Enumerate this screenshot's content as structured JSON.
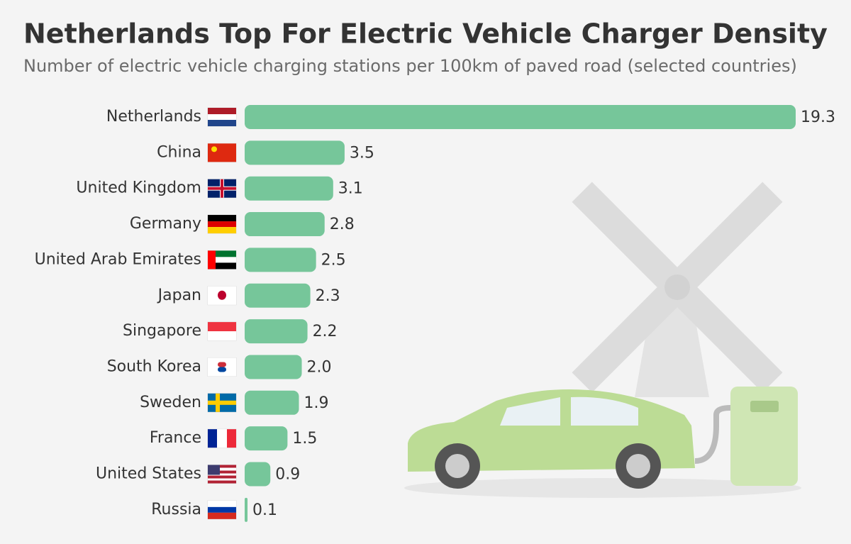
{
  "chart_data": {
    "type": "bar",
    "orientation": "horizontal",
    "title": "Netherlands Top For Electric Vehicle Charger Density",
    "subtitle": "Number of electric vehicle charging stations per 100km of paved road (selected countries)",
    "categories": [
      "Netherlands",
      "China",
      "United Kingdom",
      "Germany",
      "United Arab Emirates",
      "Japan",
      "Singapore",
      "South Korea",
      "Sweden",
      "France",
      "United States",
      "Russia"
    ],
    "values": [
      19.3,
      3.5,
      3.1,
      2.8,
      2.5,
      2.3,
      2.2,
      2.0,
      1.9,
      1.5,
      0.9,
      0.1
    ],
    "value_labels": [
      "19.3",
      "3.5",
      "3.1",
      "2.8",
      "2.5",
      "2.3",
      "2.2",
      "2.0",
      "1.9",
      "1.5",
      "0.9",
      "0.1"
    ],
    "color": "#76c69a"
  }
}
